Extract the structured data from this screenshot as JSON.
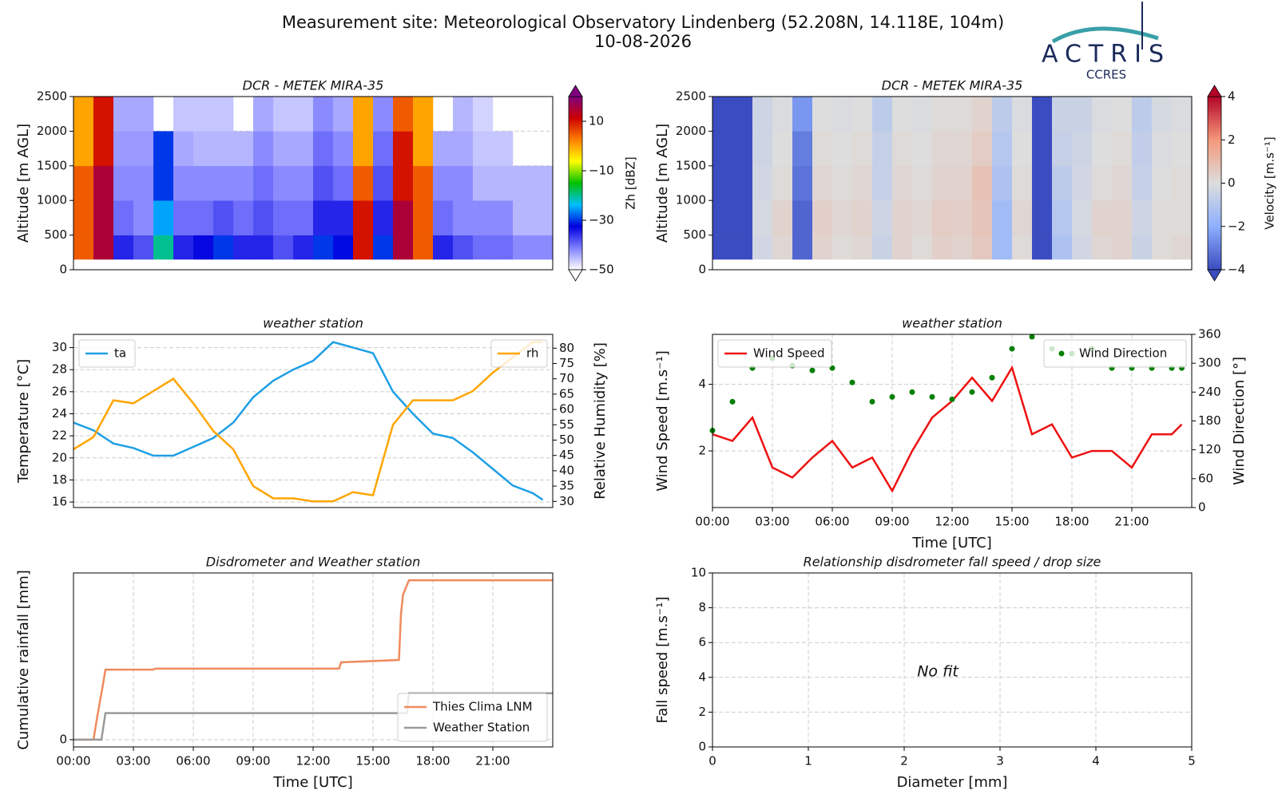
{
  "header": {
    "title": "Measurement site: Meteorological Observatory Lindenberg (52.208N, 14.118E, 104m)",
    "date": "10-08-2026",
    "logo": "ACTRIS",
    "logo_sub": "CCRES"
  },
  "chart_data": [
    {
      "type": "heatmap",
      "title": "DCR - METEK MIRA-35",
      "ylabel": "Altitude [m AGL]",
      "xlim": [
        0,
        24
      ],
      "ylim": [
        0,
        2500
      ],
      "yticks": [
        0,
        500,
        1000,
        1500,
        2000,
        2500
      ],
      "grid": true,
      "x_edges": [
        0,
        1,
        2,
        3,
        4,
        5,
        6,
        7,
        8,
        9,
        10,
        11,
        12,
        13,
        14,
        15,
        16,
        17,
        18,
        19,
        20,
        21,
        22,
        23,
        24
      ],
      "y_edges": [
        150,
        500,
        1000,
        1500,
        2000,
        2500
      ],
      "z": [
        [
          5,
          15,
          -35,
          -38,
          -20,
          -35,
          -33,
          -30,
          -35,
          -35,
          -38,
          -35,
          -30,
          -32,
          10,
          -30,
          15,
          5,
          -35,
          -38,
          -40,
          -40,
          -42,
          -42
        ],
        [
          5,
          15,
          -40,
          -42,
          -25,
          -40,
          -40,
          -38,
          -40,
          -38,
          -40,
          -40,
          -35,
          -35,
          10,
          -35,
          15,
          5,
          -40,
          -42,
          -42,
          -42,
          -45,
          -45
        ],
        [
          5,
          15,
          -42,
          -42,
          -30,
          -42,
          -42,
          -42,
          -42,
          -40,
          -42,
          -42,
          -38,
          -40,
          5,
          -38,
          10,
          5,
          -42,
          -42,
          -45,
          -45,
          -45,
          -45
        ],
        [
          0,
          10,
          -43,
          -43,
          -30,
          -44,
          -45,
          -45,
          -45,
          -42,
          -44,
          -44,
          -40,
          -42,
          0,
          -40,
          10,
          0,
          -44,
          -44,
          -46,
          -46,
          null,
          null
        ],
        [
          0,
          10,
          -44,
          -44,
          null,
          -46,
          -46,
          -46,
          null,
          -44,
          -46,
          -46,
          -42,
          -44,
          0,
          -42,
          5,
          0,
          null,
          -45,
          -47,
          null,
          null,
          null
        ]
      ],
      "clim": [
        -50,
        20
      ],
      "colorbar_label": "Zh [dBZ]",
      "cticks": [
        {
          "value": -50,
          "label": "−50"
        },
        {
          "value": -30,
          "label": "−30"
        },
        {
          "value": -10,
          "label": "−10"
        },
        10
      ],
      "colormap": [
        "#ffffff",
        "#8080ff",
        "#0000e0",
        "#00c0ff",
        "#00c000",
        "#ffff00",
        "#ff8000",
        "#cc0000",
        "#800080"
      ]
    },
    {
      "type": "heatmap",
      "title": "DCR - METEK MIRA-35",
      "ylabel": "Altitude [m AGL]",
      "xlim": [
        0,
        24
      ],
      "ylim": [
        0,
        2500
      ],
      "yticks": [
        0,
        500,
        1000,
        1500,
        2000,
        2500
      ],
      "grid": true,
      "x_edges": [
        0,
        1,
        2,
        3,
        4,
        5,
        6,
        7,
        8,
        9,
        10,
        11,
        12,
        13,
        14,
        15,
        16,
        17,
        18,
        19,
        20,
        21,
        22,
        23,
        24
      ],
      "y_edges": [
        150,
        500,
        1000,
        1500,
        2000,
        2500
      ],
      "z": [
        [
          -4,
          -4,
          -0.3,
          0.2,
          -3.5,
          0.3,
          0.1,
          0.2,
          -0.5,
          0.3,
          0.1,
          0.4,
          0.3,
          0.6,
          -1.5,
          0.1,
          -4,
          -1.2,
          -0.3,
          0.2,
          0.3,
          -0.5,
          0.1,
          0.2
        ],
        [
          -4,
          -4,
          -0.2,
          0.3,
          -3.5,
          0.4,
          0.2,
          0.3,
          -0.4,
          0.3,
          0.2,
          0.5,
          0.4,
          0.7,
          -1.5,
          0.2,
          -4,
          -1,
          -0.2,
          0.3,
          0.3,
          -0.4,
          0.1,
          0.1
        ],
        [
          -4,
          -4,
          -0.3,
          0.1,
          -3.2,
          0.2,
          0.1,
          0.2,
          -0.6,
          0.2,
          0.1,
          0.3,
          0.3,
          0.8,
          -1.2,
          0.1,
          -4,
          -0.8,
          -0.3,
          0.1,
          0.2,
          -0.6,
          0,
          0.1
        ],
        [
          -4,
          -4,
          -0.4,
          0,
          -3,
          0.1,
          0,
          0.1,
          -0.6,
          0.1,
          0,
          0.2,
          0.2,
          0.5,
          -1,
          0,
          -4,
          -0.6,
          -0.4,
          0,
          0.1,
          -0.7,
          -0.1,
          0
        ],
        [
          -4,
          -4,
          -0.4,
          -0.1,
          -2.5,
          0,
          -0.1,
          0,
          -0.8,
          0,
          -0.1,
          0.1,
          0.1,
          0.3,
          -0.8,
          -0.1,
          -4,
          -0.5,
          -0.5,
          -0.1,
          0,
          -0.8,
          -0.2,
          -0.1
        ]
      ],
      "clim": [
        -4,
        4
      ],
      "colorbar_label": "Velocity [m.s⁻¹]",
      "cticks": [
        {
          "value": -4,
          "label": "−4"
        },
        {
          "value": -2,
          "label": "−2"
        },
        0,
        2,
        4
      ],
      "colormap": [
        "#3b4cc0",
        "#8db0fe",
        "#dddddd",
        "#f4987a",
        "#b40426"
      ]
    },
    {
      "type": "line",
      "title": "weather station",
      "ylabel": "Temperature [°C]",
      "y2label": "Relative Humidity [%]",
      "xlim": [
        0,
        24
      ],
      "ylim": [
        15.5,
        31.2
      ],
      "yticks": [
        16,
        18,
        20,
        22,
        24,
        26,
        28,
        30
      ],
      "y2lim": [
        28,
        84.5
      ],
      "y2ticks": [
        30,
        35,
        40,
        45,
        50,
        55,
        60,
        65,
        70,
        75,
        80
      ],
      "grid": true,
      "x": [
        0,
        1,
        2,
        3,
        4,
        5,
        6,
        7,
        8,
        9,
        10,
        11,
        12,
        13,
        14,
        15,
        16,
        17,
        18,
        19,
        20,
        21,
        22,
        23,
        23.5
      ],
      "series": [
        {
          "name": "ta",
          "color": "#1e9fe6",
          "mode": "line",
          "legend": "upper left",
          "values": [
            23.2,
            22.5,
            21.3,
            20.9,
            20.2,
            20.2,
            21,
            21.8,
            23.2,
            25.5,
            27,
            28,
            28.8,
            30.5,
            30,
            29.5,
            26,
            24,
            22.2,
            21.8,
            20.5,
            19,
            17.5,
            16.8,
            16.2
          ]
        },
        {
          "name": "rh",
          "color": "#ffa500",
          "mode": "line",
          "legend": "upper right",
          "axis": "y2",
          "values": [
            47,
            51,
            63,
            62,
            66,
            70,
            62,
            53,
            47,
            35,
            31,
            31,
            30,
            30,
            33,
            32,
            55,
            63,
            63,
            63,
            66,
            72,
            77,
            82,
            82
          ]
        }
      ]
    },
    {
      "type": "line",
      "title": "weather station",
      "ylabel": "Wind Speed [m.s⁻¹]",
      "y2label": "Wind Direction [°]",
      "xlabel": "Time [UTC]",
      "xlim": [
        0,
        24
      ],
      "ylim": [
        0.3,
        5.5
      ],
      "yticks": [
        2,
        4
      ],
      "y2lim": [
        0,
        360
      ],
      "y2ticks": [
        0,
        60,
        120,
        180,
        240,
        300,
        360
      ],
      "grid": true,
      "xticks": [
        {
          "value": 0,
          "label": "00:00"
        },
        {
          "value": 3,
          "label": "03:00"
        },
        {
          "value": 6,
          "label": "06:00"
        },
        {
          "value": 9,
          "label": "09:00"
        },
        {
          "value": 12,
          "label": "12:00"
        },
        {
          "value": 15,
          "label": "15:00"
        },
        {
          "value": 18,
          "label": "18:00"
        },
        {
          "value": 21,
          "label": "21:00"
        }
      ],
      "x": [
        0,
        1,
        2,
        3,
        4,
        5,
        6,
        7,
        8,
        9,
        10,
        11,
        12,
        13,
        14,
        15,
        16,
        17,
        18,
        19,
        20,
        21,
        22,
        23,
        23.5
      ],
      "series": [
        {
          "name": "Wind Speed",
          "color": "#ee1111",
          "mode": "line",
          "legend": "upper left",
          "values": [
            2.5,
            2.3,
            3,
            1.5,
            1.2,
            1.8,
            2.3,
            1.5,
            1.8,
            0.8,
            2,
            3,
            3.5,
            4.2,
            3.5,
            4.5,
            2.5,
            2.8,
            1.8,
            2,
            2,
            1.5,
            2.5,
            2.5,
            2.8
          ]
        },
        {
          "name": "Wind Direction",
          "color": "#008000",
          "mode": "markers",
          "legend": "upper right",
          "axis": "y2",
          "values": [
            160,
            220,
            290,
            310,
            295,
            285,
            290,
            260,
            220,
            230,
            240,
            230,
            225,
            240,
            270,
            330,
            355,
            330,
            320,
            330,
            290,
            290,
            290,
            290,
            290
          ]
        }
      ]
    },
    {
      "type": "line",
      "title": "Disdrometer and Weather station",
      "ylabel": "Cumulative rainfall [mm]",
      "xlabel": "Time [UTC]",
      "xlim": [
        0,
        24
      ],
      "ylim": [
        -0.15,
        3.45
      ],
      "yticks": [
        0
      ],
      "grid": true,
      "legend": "lower right",
      "xticks": [
        {
          "value": 0,
          "label": "00:00"
        },
        {
          "value": 3,
          "label": "03:00"
        },
        {
          "value": 6,
          "label": "06:00"
        },
        {
          "value": 9,
          "label": "09:00"
        },
        {
          "value": 12,
          "label": "12:00"
        },
        {
          "value": 15,
          "label": "15:00"
        },
        {
          "value": 18,
          "label": "18:00"
        },
        {
          "value": 21,
          "label": "21:00"
        }
      ],
      "series": [
        {
          "name": "Thies Clima LNM",
          "color": "#f08a5d",
          "mode": "line",
          "x": [
            0,
            1.0,
            1.2,
            1.5,
            1.6,
            4,
            4.1,
            13.3,
            13.4,
            16.3,
            16.4,
            16.5,
            16.8,
            17,
            24
          ],
          "values": [
            0,
            0,
            0.5,
            1.2,
            1.45,
            1.45,
            1.47,
            1.47,
            1.6,
            1.65,
            2.6,
            3.0,
            3.3,
            3.3,
            3.3
          ]
        },
        {
          "name": "Weather Station",
          "color": "#999999",
          "mode": "line",
          "x": [
            0,
            1.4,
            1.6,
            16.7,
            16.8,
            24
          ],
          "values": [
            0,
            0,
            0.55,
            0.55,
            0.96,
            0.96
          ]
        }
      ]
    },
    {
      "type": "scatter",
      "title": "Relationship disdrometer fall speed / drop size",
      "ylabel": "Fall speed [m.s⁻¹]",
      "xlabel": "Diameter [mm]",
      "xlim": [
        0,
        5
      ],
      "xticks": [
        0,
        1,
        2,
        3,
        4,
        5
      ],
      "ylim": [
        0,
        10
      ],
      "yticks": [
        0,
        2,
        4,
        6,
        8,
        10
      ],
      "grid": true,
      "annotation": "No fit"
    }
  ]
}
